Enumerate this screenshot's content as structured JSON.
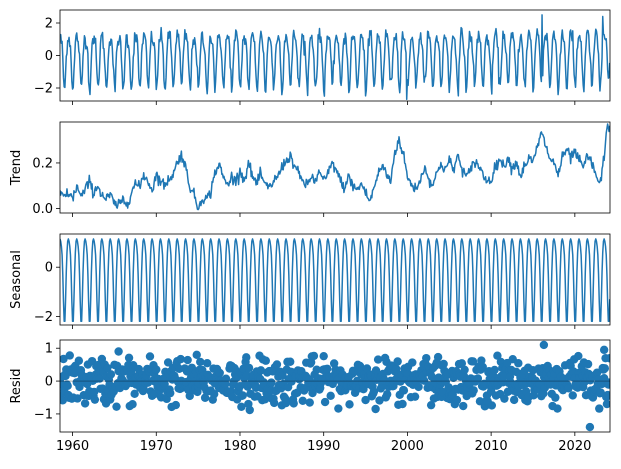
{
  "chart_data": {
    "type": "multi-panel time series decomposition",
    "x_range": [
      1958.5,
      2024.2
    ],
    "x_ticks": [
      1960,
      1970,
      1980,
      1990,
      2000,
      2010,
      2020
    ],
    "x_tick_labels": [
      "1960",
      "1970",
      "1980",
      "1990",
      "2000",
      "2010",
      "2020"
    ],
    "series_color": "#1f77b4",
    "panels": [
      {
        "id": "observed",
        "type": "line",
        "ylabel": "",
        "ylim": [
          -2.8,
          2.8
        ],
        "y_ticks": [
          -2,
          0,
          2
        ],
        "y_tick_labels": [
          "−2",
          "0",
          "2"
        ],
        "description": "monthly observed series oscillating annually between about -2.3 and 1.6",
        "frequency": 12,
        "amplitude_low": -2.1,
        "amplitude_high": 1.2,
        "extreme_points": [
          {
            "x": 2016.1,
            "y": 2.5
          },
          {
            "x": 2023.3,
            "y": 2.4
          },
          {
            "x": 1999.9,
            "y": -2.7
          }
        ]
      },
      {
        "id": "trend",
        "type": "line",
        "ylabel": "Trend",
        "ylim": [
          -0.02,
          0.38
        ],
        "y_ticks": [
          0.0,
          0.2
        ],
        "y_tick_labels": [
          "0.0",
          "0.2"
        ],
        "points": [
          [
            1958.5,
            0.07
          ],
          [
            1959.0,
            0.05
          ],
          [
            1959.5,
            0.07
          ],
          [
            1960.0,
            0.04
          ],
          [
            1960.5,
            0.1
          ],
          [
            1961.0,
            0.05
          ],
          [
            1961.5,
            0.08
          ],
          [
            1962.0,
            0.12
          ],
          [
            1962.5,
            0.07
          ],
          [
            1963.0,
            0.1
          ],
          [
            1963.5,
            0.06
          ],
          [
            1964.0,
            0.04
          ],
          [
            1964.5,
            0.06
          ],
          [
            1965.0,
            0.02
          ],
          [
            1965.5,
            0.01
          ],
          [
            1966.0,
            0.04
          ],
          [
            1966.5,
            0.02
          ],
          [
            1967.0,
            0.07
          ],
          [
            1967.5,
            0.11
          ],
          [
            1968.0,
            0.09
          ],
          [
            1968.5,
            0.15
          ],
          [
            1969.0,
            0.12
          ],
          [
            1969.5,
            0.08
          ],
          [
            1970.0,
            0.15
          ],
          [
            1970.5,
            0.12
          ],
          [
            1971.0,
            0.1
          ],
          [
            1971.5,
            0.13
          ],
          [
            1972.0,
            0.15
          ],
          [
            1972.5,
            0.2
          ],
          [
            1973.0,
            0.24
          ],
          [
            1973.5,
            0.18
          ],
          [
            1974.0,
            0.1
          ],
          [
            1974.5,
            0.06
          ],
          [
            1975.0,
            0.0
          ],
          [
            1975.5,
            0.05
          ],
          [
            1976.0,
            0.04
          ],
          [
            1976.5,
            0.07
          ],
          [
            1977.0,
            0.16
          ],
          [
            1977.5,
            0.19
          ],
          [
            1978.0,
            0.14
          ],
          [
            1978.5,
            0.1
          ],
          [
            1979.0,
            0.14
          ],
          [
            1979.5,
            0.12
          ],
          [
            1980.0,
            0.17
          ],
          [
            1980.5,
            0.12
          ],
          [
            1981.0,
            0.2
          ],
          [
            1981.5,
            0.14
          ],
          [
            1982.0,
            0.11
          ],
          [
            1982.5,
            0.15
          ],
          [
            1983.0,
            0.1
          ],
          [
            1983.5,
            0.09
          ],
          [
            1984.0,
            0.12
          ],
          [
            1984.5,
            0.14
          ],
          [
            1985.0,
            0.18
          ],
          [
            1985.5,
            0.21
          ],
          [
            1986.0,
            0.23
          ],
          [
            1986.5,
            0.19
          ],
          [
            1987.0,
            0.15
          ],
          [
            1987.5,
            0.12
          ],
          [
            1988.0,
            0.1
          ],
          [
            1988.5,
            0.14
          ],
          [
            1989.0,
            0.12
          ],
          [
            1989.5,
            0.16
          ],
          [
            1990.0,
            0.12
          ],
          [
            1990.5,
            0.15
          ],
          [
            1991.0,
            0.2
          ],
          [
            1991.5,
            0.17
          ],
          [
            1992.0,
            0.12
          ],
          [
            1992.5,
            0.09
          ],
          [
            1993.0,
            0.14
          ],
          [
            1993.5,
            0.1
          ],
          [
            1994.0,
            0.08
          ],
          [
            1994.5,
            0.11
          ],
          [
            1995.0,
            0.07
          ],
          [
            1995.5,
            0.03
          ],
          [
            1996.0,
            0.09
          ],
          [
            1996.5,
            0.15
          ],
          [
            1997.0,
            0.19
          ],
          [
            1997.5,
            0.15
          ],
          [
            1998.0,
            0.12
          ],
          [
            1998.5,
            0.25
          ],
          [
            1999.0,
            0.3
          ],
          [
            1999.5,
            0.24
          ],
          [
            2000.0,
            0.14
          ],
          [
            2000.5,
            0.1
          ],
          [
            2001.0,
            0.09
          ],
          [
            2001.5,
            0.12
          ],
          [
            2002.0,
            0.18
          ],
          [
            2002.5,
            0.14
          ],
          [
            2003.0,
            0.1
          ],
          [
            2003.5,
            0.15
          ],
          [
            2004.0,
            0.2
          ],
          [
            2004.5,
            0.17
          ],
          [
            2005.0,
            0.21
          ],
          [
            2005.5,
            0.17
          ],
          [
            2006.0,
            0.23
          ],
          [
            2006.5,
            0.18
          ],
          [
            2007.0,
            0.14
          ],
          [
            2007.5,
            0.16
          ],
          [
            2008.0,
            0.21
          ],
          [
            2008.5,
            0.19
          ],
          [
            2009.0,
            0.15
          ],
          [
            2009.5,
            0.12
          ],
          [
            2010.0,
            0.13
          ],
          [
            2010.5,
            0.18
          ],
          [
            2011.0,
            0.22
          ],
          [
            2011.5,
            0.18
          ],
          [
            2012.0,
            0.23
          ],
          [
            2012.5,
            0.17
          ],
          [
            2013.0,
            0.21
          ],
          [
            2013.5,
            0.14
          ],
          [
            2014.0,
            0.19
          ],
          [
            2014.5,
            0.22
          ],
          [
            2015.0,
            0.2
          ],
          [
            2015.5,
            0.27
          ],
          [
            2016.0,
            0.33
          ],
          [
            2016.5,
            0.28
          ],
          [
            2017.0,
            0.22
          ],
          [
            2017.5,
            0.2
          ],
          [
            2018.0,
            0.15
          ],
          [
            2018.5,
            0.22
          ],
          [
            2019.0,
            0.26
          ],
          [
            2019.5,
            0.22
          ],
          [
            2020.0,
            0.25
          ],
          [
            2020.5,
            0.21
          ],
          [
            2021.0,
            0.18
          ],
          [
            2021.5,
            0.23
          ],
          [
            2022.0,
            0.2
          ],
          [
            2022.5,
            0.15
          ],
          [
            2023.0,
            0.1
          ],
          [
            2023.3,
            0.18
          ],
          [
            2023.6,
            0.26
          ],
          [
            2023.9,
            0.36
          ]
        ]
      },
      {
        "id": "seasonal",
        "type": "line",
        "ylabel": "Seasonal",
        "ylim": [
          -2.35,
          1.35
        ],
        "y_ticks": [
          -2,
          0
        ],
        "y_tick_labels": [
          "−2",
          "0"
        ],
        "period": 12,
        "pattern": [
          1.15,
          1.05,
          0.85,
          0.5,
          -0.3,
          -1.4,
          -2.2,
          -2.2,
          -1.3,
          -0.2,
          0.6,
          1.05
        ]
      },
      {
        "id": "resid",
        "type": "scatter",
        "ylabel": "Resid",
        "ylim": [
          -1.55,
          1.25
        ],
        "y_ticks": [
          -1,
          0,
          1
        ],
        "y_tick_labels": [
          "−1",
          "0",
          "1"
        ],
        "spread": 0.35,
        "highlight_points": [
          {
            "x": 2016.3,
            "y": 1.1
          },
          {
            "x": 2023.5,
            "y": 0.95
          },
          {
            "x": 2021.8,
            "y": -1.4
          },
          {
            "x": 1965.5,
            "y": 0.9
          },
          {
            "x": 1996.2,
            "y": -0.85
          }
        ]
      }
    ]
  }
}
